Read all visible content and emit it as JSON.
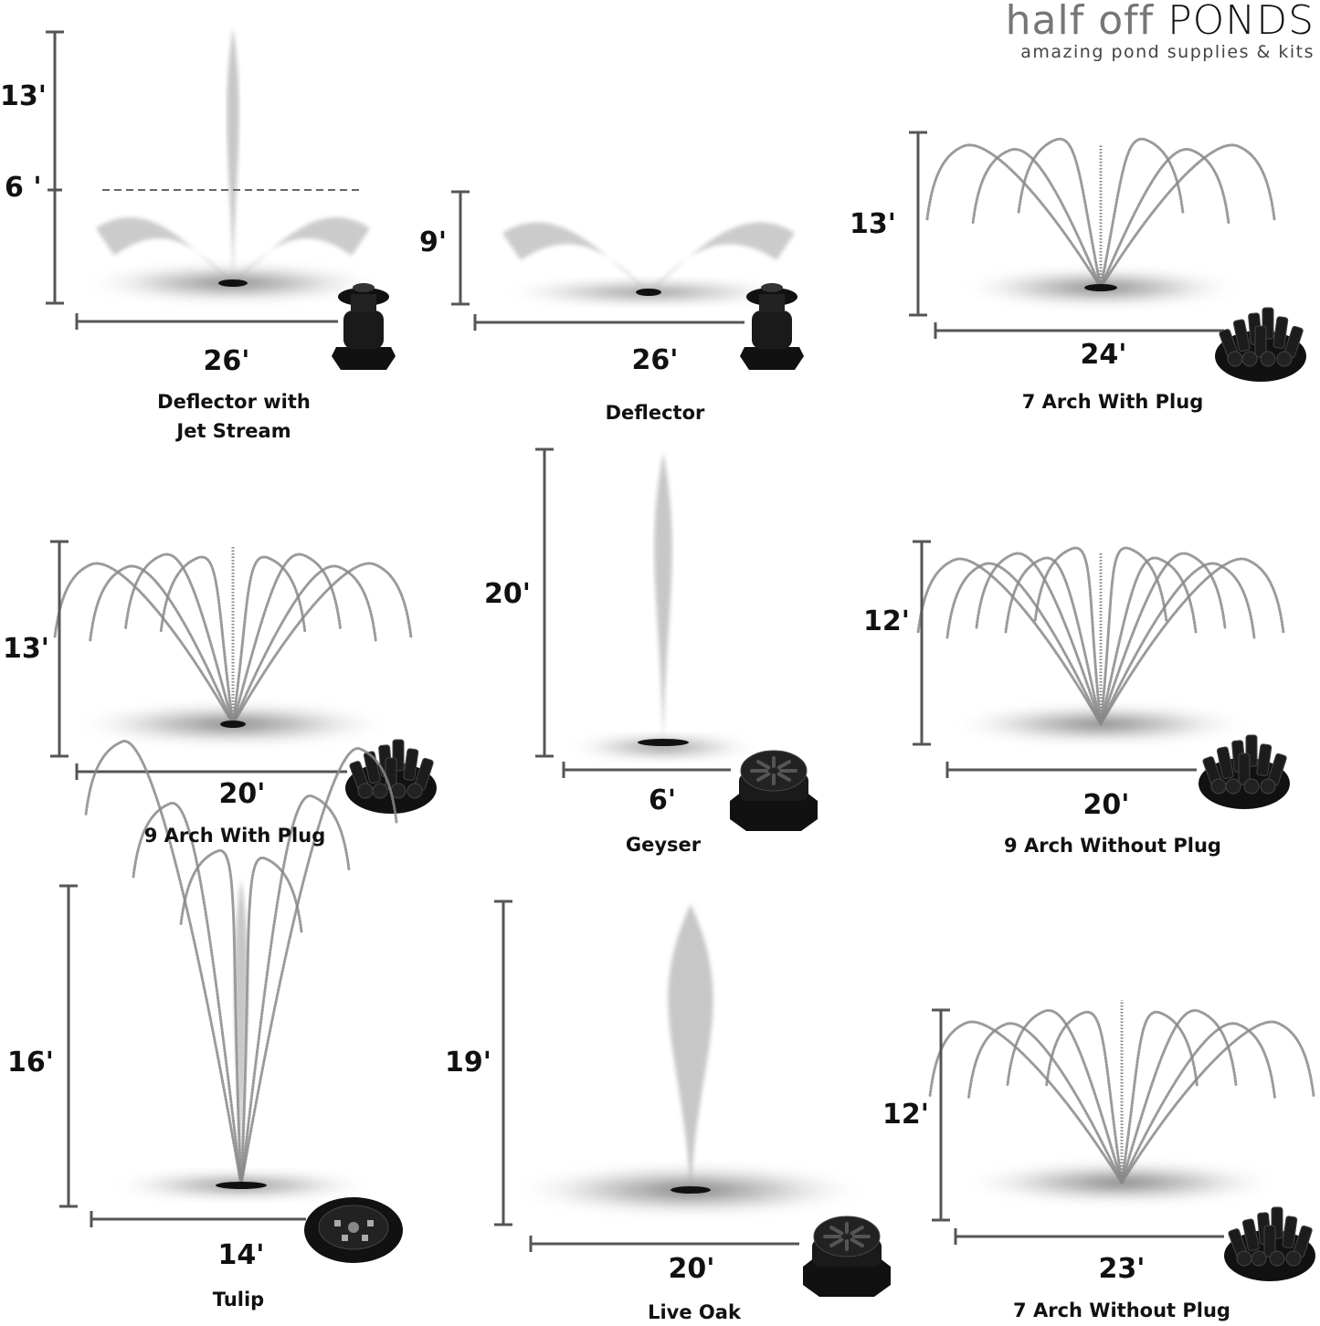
{
  "logo": {
    "brand_light": "half off",
    "brand_bold": "PONDS",
    "tagline": "amazing pond supplies & kits"
  },
  "panels": [
    {
      "name_lines": [
        "Deflector with",
        "Jet Stream"
      ],
      "height": "13'",
      "mid_height": "6 '",
      "width": "26'",
      "pattern": "deflector-jet",
      "nozzle": "deflector-nozzle"
    },
    {
      "name_lines": [
        "Deflector"
      ],
      "height": "9'",
      "width": "26'",
      "pattern": "deflector",
      "nozzle": "deflector-nozzle"
    },
    {
      "name_lines": [
        "7 Arch With Plug"
      ],
      "height": "13'",
      "width": "24'",
      "pattern": "7-arch",
      "nozzle": "arch-plug-nozzle"
    },
    {
      "name_lines": [
        "9 Arch With Plug"
      ],
      "height": "13'",
      "width": "20'",
      "pattern": "9-arch",
      "nozzle": "arch-plug-nozzle"
    },
    {
      "name_lines": [
        "Geyser"
      ],
      "height": "20'",
      "width": "6'",
      "pattern": "geyser",
      "nozzle": "geyser-nozzle"
    },
    {
      "name_lines": [
        "9 Arch Without Plug"
      ],
      "height": "12'",
      "width": "20'",
      "pattern": "9-arch-open",
      "nozzle": "arch-nozzle"
    },
    {
      "name_lines": [
        "Tulip"
      ],
      "height": "16'",
      "width": "14'",
      "pattern": "tulip",
      "nozzle": "tulip-nozzle"
    },
    {
      "name_lines": [
        "Live Oak"
      ],
      "height": "19'",
      "width": "20'",
      "pattern": "live-oak",
      "nozzle": "geyser-nozzle"
    },
    {
      "name_lines": [
        "7 Arch Without Plug"
      ],
      "height": "12'",
      "width": "23'",
      "pattern": "7-arch-open",
      "nozzle": "arch-nozzle"
    }
  ],
  "colors": {
    "text": "#111111",
    "dimension_line": "#555555",
    "spray": "#8a8a8a",
    "nozzle": "#111111"
  }
}
